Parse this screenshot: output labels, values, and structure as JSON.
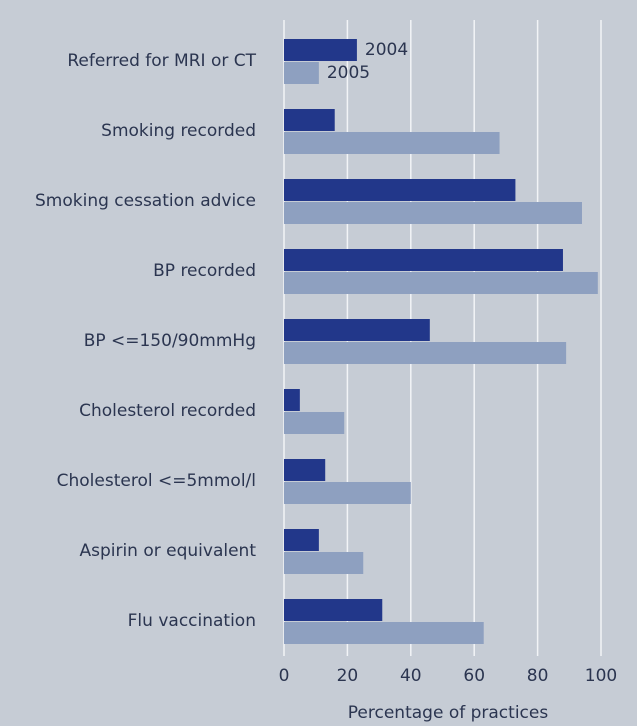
{
  "chart_data": {
    "type": "hbar",
    "xlabel": "Percentage of practices",
    "categories": [
      "Referred for MRI or CT",
      "Smoking recorded",
      "Smoking cessation advice",
      "BP recorded",
      "BP <=150/90mmHg",
      "Cholesterol recorded",
      "Cholesterol <=5mmol/l",
      "Aspirin or equivalent",
      "Flu vaccination"
    ],
    "series": [
      {
        "name": "2004",
        "color": "#22378a",
        "values": [
          23,
          16,
          73,
          88,
          46,
          5,
          13,
          11,
          31
        ]
      },
      {
        "name": "2005",
        "color": "#8ea0c0",
        "values": [
          11,
          68,
          94,
          99,
          89,
          19,
          40,
          25,
          63
        ]
      }
    ],
    "xlim": [
      0,
      100
    ],
    "xticks": [
      0,
      20,
      40,
      60,
      80,
      100
    ],
    "grid": true
  }
}
